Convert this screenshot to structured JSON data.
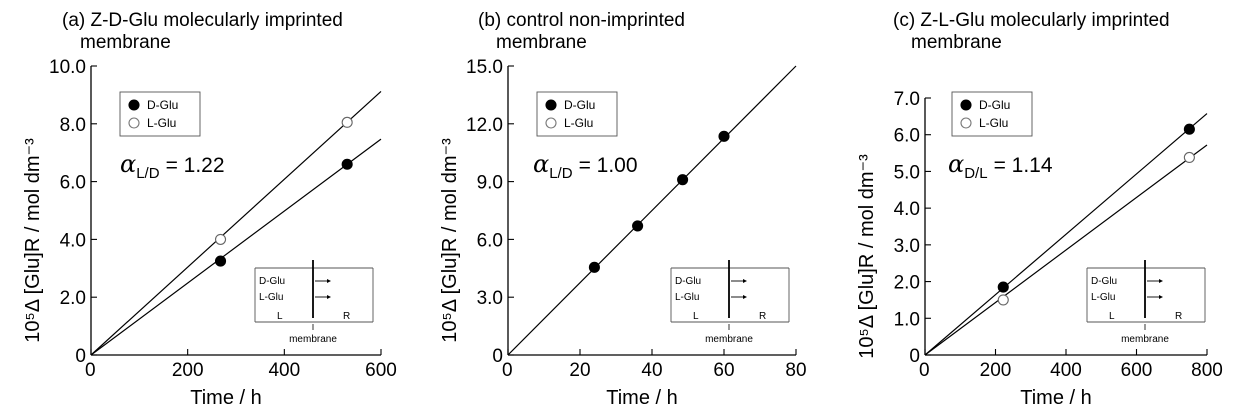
{
  "chart_data": [
    {
      "type": "scatter",
      "title_line1": "(a) Z-D-Glu molecularly imprinted",
      "title_line2": "membrane",
      "xlabel": "Time / h",
      "ylabel": "10⁵Δ [Glu]R / mol dm⁻³",
      "xlim": [
        0,
        600
      ],
      "ylim": [
        0,
        10
      ],
      "x_ticks": [
        0,
        200,
        400,
        600
      ],
      "y_ticks": [
        0,
        2.0,
        4.0,
        6.0,
        8.0,
        10.0
      ],
      "x_tick_labels": [
        "0",
        "200",
        "400",
        "600"
      ],
      "y_tick_labels": [
        "0",
        "2.0",
        "4.0",
        "6.0",
        "8.0",
        "10.0"
      ],
      "series": [
        {
          "name": "D-Glu",
          "marker": "filled",
          "x": [
            268,
            530
          ],
          "y": [
            3.25,
            6.6
          ],
          "fit_slope": 0.01245
        },
        {
          "name": "L-Glu",
          "marker": "open",
          "x": [
            268,
            530
          ],
          "y": [
            4.0,
            8.05
          ],
          "fit_slope": 0.0152
        }
      ],
      "annotation_symbol": "α",
      "annotation_sub": "L/D",
      "annotation_value": "= 1.22",
      "inset": {
        "rows": [
          "D-Glu",
          "L-Glu"
        ],
        "left": "L",
        "right": "R",
        "caption": "membrane"
      }
    },
    {
      "type": "scatter",
      "title_line1": "(b) control non-imprinted",
      "title_line2": "membrane",
      "xlabel": "Time / h",
      "ylabel": "10⁵Δ [Glu]R / mol dm⁻³",
      "xlim": [
        0,
        80
      ],
      "ylim": [
        0,
        15
      ],
      "x_ticks": [
        0,
        20,
        40,
        60,
        80
      ],
      "y_ticks": [
        0,
        3.0,
        6.0,
        9.0,
        12.0,
        15.0
      ],
      "x_tick_labels": [
        "0",
        "20",
        "40",
        "60",
        "80"
      ],
      "y_tick_labels": [
        "0",
        "3.0",
        "6.0",
        "9.0",
        "12.0",
        "15.0"
      ],
      "series": [
        {
          "name": "D-Glu",
          "marker": "filled",
          "x": [
            24,
            36,
            48.5,
            60
          ],
          "y": [
            4.55,
            6.7,
            9.1,
            11.35
          ],
          "fit_slope": 0.1875
        },
        {
          "name": "L-Glu",
          "marker": "open",
          "x": [],
          "y": [],
          "fit_slope": null
        }
      ],
      "annotation_symbol": "α",
      "annotation_sub": "L/D",
      "annotation_value": "= 1.00",
      "inset": {
        "rows": [
          "D-Glu",
          "L-Glu"
        ],
        "left": "L",
        "right": "R",
        "caption": "membrane"
      }
    },
    {
      "type": "scatter",
      "title_line1": "(c) Z-L-Glu molecularly imprinted",
      "title_line2": "membrane",
      "xlabel": "Time / h",
      "ylabel": "10⁵Δ [Glu]R / mol dm⁻³",
      "xlim": [
        0,
        800
      ],
      "ylim": [
        0,
        7
      ],
      "x_ticks": [
        0,
        200,
        400,
        600,
        800
      ],
      "y_ticks": [
        0,
        1.0,
        2.0,
        3.0,
        4.0,
        5.0,
        6.0,
        7.0
      ],
      "x_tick_labels": [
        "0",
        "200",
        "400",
        "600",
        "800"
      ],
      "y_tick_labels": [
        "0",
        "1.0",
        "2.0",
        "3.0",
        "4.0",
        "5.0",
        "6.0",
        "7.0"
      ],
      "series": [
        {
          "name": "D-Glu",
          "marker": "filled",
          "x": [
            222,
            750
          ],
          "y": [
            1.85,
            6.15
          ],
          "fit_slope": 0.00822
        },
        {
          "name": "L-Glu",
          "marker": "open",
          "x": [
            222,
            750
          ],
          "y": [
            1.5,
            5.38
          ],
          "fit_slope": 0.00715
        }
      ],
      "annotation_symbol": "α",
      "annotation_sub": "D/L",
      "annotation_value": "= 1.14",
      "inset": {
        "rows": [
          "D-Glu",
          "L-Glu"
        ],
        "left": "L",
        "right": "R",
        "caption": "membrane"
      }
    }
  ]
}
